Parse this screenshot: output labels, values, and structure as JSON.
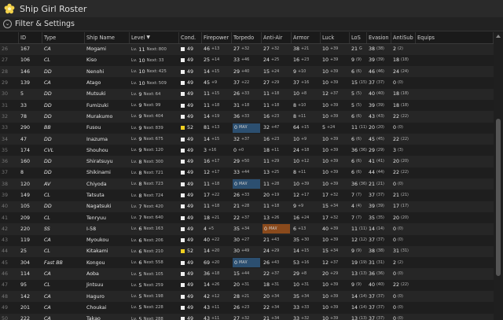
{
  "window": {
    "title": "Ship Girl Roster",
    "icon": "star-flower-icon"
  },
  "filter": {
    "label": "Filter & Settings"
  },
  "columns": {
    "id": "ID",
    "type": "Type",
    "name": "Ship Name",
    "level": "Level",
    "sort": "▼",
    "cond": "Cond.",
    "fp": "Firepower",
    "tp": "Torpedo",
    "aa": "Anti-Air",
    "ar": "Armor",
    "lk": "Luck",
    "los": "LoS",
    "ev": "Evasion",
    "as": "AntiSub",
    "eq": "Equips"
  },
  "labels": {
    "lv": "Lv.",
    "next": "Next:",
    "max": "MAX"
  },
  "rows": [
    {
      "rn": "26",
      "id": "167",
      "type": "CA",
      "name": "Mogami",
      "lv": "11",
      "next": "800",
      "cond": "49",
      "cy": false,
      "fp": [
        "46",
        "+13"
      ],
      "tp": [
        "27",
        "+32"
      ],
      "aa": [
        "27",
        "+32"
      ],
      "ar": [
        "38",
        "+21"
      ],
      "lk": [
        "10",
        "+39"
      ],
      "los": [
        "21",
        "G"
      ],
      "ev": [
        "38",
        "(38)"
      ],
      "as": [
        "2",
        "(2)"
      ]
    },
    {
      "rn": "27",
      "id": "106",
      "type": "CL",
      "name": "Kiso",
      "lv": "10",
      "next": "33",
      "cond": "49",
      "cy": false,
      "fp": [
        "25",
        "+14"
      ],
      "tp": [
        "33",
        "+46"
      ],
      "aa": [
        "24",
        "+25"
      ],
      "ar": [
        "16",
        "+23"
      ],
      "lk": [
        "10",
        "+39"
      ],
      "los": [
        "9",
        "(9)"
      ],
      "ev": [
        "39",
        "(39)"
      ],
      "as": [
        "18",
        "(18)"
      ]
    },
    {
      "rn": "28",
      "id": "146",
      "type": "DD",
      "name": "Nenohi",
      "lv": "10",
      "next": "425",
      "cond": "49",
      "cy": false,
      "fp": [
        "14",
        "+15"
      ],
      "tp": [
        "29",
        "+40"
      ],
      "aa": [
        "15",
        "+24"
      ],
      "ar": [
        "9",
        "+10"
      ],
      "lk": [
        "10",
        "+39"
      ],
      "los": [
        "6",
        "(6)"
      ],
      "ev": [
        "46",
        "(46)"
      ],
      "as": [
        "24",
        "(24)"
      ]
    },
    {
      "rn": "29",
      "id": "139",
      "type": "CA",
      "name": "Atago",
      "lv": "10",
      "next": "509",
      "cond": "49",
      "cy": false,
      "fp": [
        "45",
        "+9"
      ],
      "tp": [
        "37",
        "+22"
      ],
      "aa": [
        "27",
        "+29"
      ],
      "ar": [
        "37",
        "+16"
      ],
      "lk": [
        "10",
        "+39"
      ],
      "los": [
        "15",
        "(15)"
      ],
      "ev": [
        "37",
        "(37)"
      ],
      "as": [
        "0",
        "(0)"
      ]
    },
    {
      "rn": "30",
      "id": "5",
      "type": "DD",
      "name": "Mutsuki",
      "lv": "9",
      "next": "64",
      "cond": "49",
      "cy": false,
      "fp": [
        "11",
        "+15"
      ],
      "tp": [
        "26",
        "+33"
      ],
      "aa": [
        "11",
        "+18"
      ],
      "ar": [
        "10",
        "+8"
      ],
      "lk": [
        "12",
        "+37"
      ],
      "los": [
        "5",
        "(5)"
      ],
      "ev": [
        "40",
        "(40)"
      ],
      "as": [
        "18",
        "(18)"
      ]
    },
    {
      "rn": "31",
      "id": "33",
      "type": "DD",
      "name": "Fumizuki",
      "lv": "9",
      "next": "99",
      "cond": "49",
      "cy": false,
      "fp": [
        "11",
        "+18"
      ],
      "tp": [
        "31",
        "+18"
      ],
      "aa": [
        "11",
        "+18"
      ],
      "ar": [
        "8",
        "+10"
      ],
      "lk": [
        "10",
        "+39"
      ],
      "los": [
        "5",
        "(5)"
      ],
      "ev": [
        "39",
        "(39)"
      ],
      "as": [
        "18",
        "(18)"
      ]
    },
    {
      "rn": "32",
      "id": "78",
      "type": "DD",
      "name": "Murakumo",
      "lv": "9",
      "next": "404",
      "cond": "49",
      "cy": false,
      "fp": [
        "14",
        "+19"
      ],
      "tp": [
        "36",
        "+33"
      ],
      "aa": [
        "16",
        "+23"
      ],
      "ar": [
        "8",
        "+11"
      ],
      "lk": [
        "10",
        "+39"
      ],
      "los": [
        "6",
        "(6)"
      ],
      "ev": [
        "43",
        "(43)"
      ],
      "as": [
        "22",
        "(22)"
      ]
    },
    {
      "rn": "33",
      "id": "290",
      "type": "BB",
      "name": "Fusou",
      "lv": "9",
      "next": "839",
      "cond": "52",
      "cy": true,
      "fp": [
        "81",
        "+13"
      ],
      "tp": [
        "0",
        ""
      ],
      "tpmax": true,
      "aa": [
        "32",
        "+47"
      ],
      "ar": [
        "64",
        "+15"
      ],
      "lk": [
        "5",
        "+24"
      ],
      "los": [
        "11",
        "(11)"
      ],
      "ev": [
        "20",
        "(20)"
      ],
      "as": [
        "0",
        "(0)"
      ]
    },
    {
      "rn": "34",
      "id": "47",
      "type": "DD",
      "name": "Inazuma",
      "lv": "9",
      "next": "675",
      "cond": "49",
      "cy": false,
      "fp": [
        "14",
        "+15"
      ],
      "tp": [
        "32",
        "+37"
      ],
      "aa": [
        "16",
        "+23"
      ],
      "ar": [
        "10",
        "+9"
      ],
      "lk": [
        "10",
        "+39"
      ],
      "los": [
        "6",
        "(6)"
      ],
      "ev": [
        "45",
        "(45)"
      ],
      "as": [
        "22",
        "(22)"
      ]
    },
    {
      "rn": "35",
      "id": "174",
      "type": "CVL",
      "name": "Shouhou",
      "lv": "9",
      "next": "120",
      "cond": "49",
      "cy": false,
      "fp": [
        "3",
        "+16"
      ],
      "tp": [
        "0",
        "+0"
      ],
      "aa": [
        "18",
        "+11"
      ],
      "ar": [
        "24",
        "+18"
      ],
      "lk": [
        "10",
        "+39"
      ],
      "los": [
        "36",
        "(36)"
      ],
      "ev": [
        "29",
        "(29)"
      ],
      "as": [
        "3",
        "(3)"
      ]
    },
    {
      "rn": "36",
      "id": "160",
      "type": "DD",
      "name": "Shiratsuyu",
      "lv": "8",
      "next": "300",
      "cond": "49",
      "cy": false,
      "fp": [
        "16",
        "+17"
      ],
      "tp": [
        "29",
        "+50"
      ],
      "aa": [
        "11",
        "+29"
      ],
      "ar": [
        "10",
        "+12"
      ],
      "lk": [
        "10",
        "+39"
      ],
      "los": [
        "6",
        "(6)"
      ],
      "ev": [
        "41",
        "(41)"
      ],
      "as": [
        "20",
        "(20)"
      ]
    },
    {
      "rn": "37",
      "id": "8",
      "type": "DD",
      "name": "Shikinami",
      "lv": "8",
      "next": "721",
      "cond": "49",
      "cy": false,
      "fp": [
        "12",
        "+17"
      ],
      "tp": [
        "33",
        "+44"
      ],
      "aa": [
        "13",
        "+25"
      ],
      "ar": [
        "8",
        "+11"
      ],
      "lk": [
        "10",
        "+39"
      ],
      "los": [
        "6",
        "(6)"
      ],
      "ev": [
        "44",
        "(44)"
      ],
      "as": [
        "22",
        "(22)"
      ]
    },
    {
      "rn": "38",
      "id": "120",
      "type": "AV",
      "name": "Chiyoda",
      "lv": "8",
      "next": "723",
      "cond": "49",
      "cy": false,
      "fp": [
        "11",
        "+18"
      ],
      "tp": [
        "0",
        ""
      ],
      "tpmax": true,
      "aa": [
        "11",
        "+28"
      ],
      "ar": [
        "10",
        "+39"
      ],
      "lk": [
        "10",
        "+39"
      ],
      "los": [
        "36",
        "(36)"
      ],
      "ev": [
        "21",
        "(21)"
      ],
      "as": [
        "0",
        "(0)"
      ]
    },
    {
      "rn": "39",
      "id": "149",
      "type": "CL",
      "name": "Tatsuta",
      "lv": "8",
      "next": "724",
      "cond": "49",
      "cy": false,
      "fp": [
        "17",
        "+22"
      ],
      "tp": [
        "26",
        "+33"
      ],
      "aa": [
        "20",
        "+19"
      ],
      "ar": [
        "12",
        "+17"
      ],
      "lk": [
        "17",
        "+32"
      ],
      "los": [
        "7",
        "(7)"
      ],
      "ev": [
        "37",
        "(37)"
      ],
      "as": [
        "21",
        "(21)"
      ]
    },
    {
      "rn": "40",
      "id": "105",
      "type": "DD",
      "name": "Nagatsuki",
      "lv": "7",
      "next": "420",
      "cond": "49",
      "cy": false,
      "fp": [
        "11",
        "+18"
      ],
      "tp": [
        "21",
        "+28"
      ],
      "aa": [
        "11",
        "+18"
      ],
      "ar": [
        "9",
        "+9"
      ],
      "lk": [
        "15",
        "+34"
      ],
      "los": [
        "4",
        "(4)"
      ],
      "ev": [
        "39",
        "(39)"
      ],
      "as": [
        "17",
        "(17)"
      ]
    },
    {
      "rn": "41",
      "id": "209",
      "type": "CL",
      "name": "Tenryuu",
      "lv": "7",
      "next": "640",
      "cond": "49",
      "cy": false,
      "fp": [
        "18",
        "+21"
      ],
      "tp": [
        "22",
        "+37"
      ],
      "aa": [
        "13",
        "+26"
      ],
      "ar": [
        "16",
        "+24"
      ],
      "lk": [
        "17",
        "+32"
      ],
      "los": [
        "7",
        "(7)"
      ],
      "ev": [
        "35",
        "(35)"
      ],
      "as": [
        "20",
        "(20)"
      ]
    },
    {
      "rn": "42",
      "id": "220",
      "type": "SS",
      "name": "I-58",
      "lv": "6",
      "next": "163",
      "cond": "49",
      "cy": false,
      "fp": [
        "4",
        "+5"
      ],
      "tp": [
        "35",
        "+34"
      ],
      "aa": [
        "0",
        ""
      ],
      "aamax": true,
      "ar": [
        "6",
        "+13"
      ],
      "lk": [
        "40",
        "+39"
      ],
      "los": [
        "11",
        "(11)"
      ],
      "ev": [
        "14",
        "(14)"
      ],
      "as": [
        "0",
        "(0)"
      ]
    },
    {
      "rn": "43",
      "id": "119",
      "type": "CA",
      "name": "Myoukou",
      "lv": "6",
      "next": "206",
      "cond": "49",
      "cy": false,
      "fp": [
        "40",
        "+22"
      ],
      "tp": [
        "30",
        "+27"
      ],
      "aa": [
        "21",
        "+43"
      ],
      "ar": [
        "35",
        "+30"
      ],
      "lk": [
        "10",
        "+39"
      ],
      "los": [
        "12",
        "(12)"
      ],
      "ev": [
        "37",
        "(37)"
      ],
      "as": [
        "0",
        "(0)"
      ]
    },
    {
      "rn": "44",
      "id": "25",
      "type": "CL",
      "name": "Kitakami",
      "lv": "6",
      "next": "210",
      "cond": "52",
      "cy": true,
      "fp": [
        "14",
        "+20"
      ],
      "tp": [
        "30",
        "+49"
      ],
      "aa": [
        "24",
        "+29"
      ],
      "ar": [
        "14",
        "+15"
      ],
      "lk": [
        "15",
        "+34"
      ],
      "los": [
        "9",
        "(9)"
      ],
      "ev": [
        "38",
        "(38)"
      ],
      "as": [
        "31",
        "(31)"
      ]
    },
    {
      "rn": "45",
      "id": "304",
      "type": "Fast BB",
      "name": "Kongou",
      "lv": "6",
      "next": "558",
      "cond": "49",
      "cy": false,
      "fp": [
        "69",
        "+20"
      ],
      "tp": [
        "0",
        ""
      ],
      "tpmax": true,
      "aa": [
        "26",
        "+43"
      ],
      "ar": [
        "53",
        "+16"
      ],
      "lk": [
        "12",
        "+37"
      ],
      "los": [
        "19",
        "(19)"
      ],
      "ev": [
        "31",
        "(31)"
      ],
      "as": [
        "2",
        "(2)"
      ]
    },
    {
      "rn": "46",
      "id": "114",
      "type": "CA",
      "name": "Aoba",
      "lv": "5",
      "next": "105",
      "cond": "49",
      "cy": false,
      "fp": [
        "36",
        "+18"
      ],
      "tp": [
        "15",
        "+44"
      ],
      "aa": [
        "22",
        "+37"
      ],
      "ar": [
        "29",
        "+8"
      ],
      "lk": [
        "20",
        "+29"
      ],
      "los": [
        "13",
        "(13)"
      ],
      "ev": [
        "36",
        "(36)"
      ],
      "as": [
        "0",
        "(0)"
      ]
    },
    {
      "rn": "47",
      "id": "95",
      "type": "CL",
      "name": "Jintsuu",
      "lv": "5",
      "next": "259",
      "cond": "49",
      "cy": false,
      "fp": [
        "14",
        "+26"
      ],
      "tp": [
        "20",
        "+31"
      ],
      "aa": [
        "18",
        "+31"
      ],
      "ar": [
        "10",
        "+31"
      ],
      "lk": [
        "10",
        "+39"
      ],
      "los": [
        "9",
        "(9)"
      ],
      "ev": [
        "40",
        "(40)"
      ],
      "as": [
        "22",
        "(22)"
      ]
    },
    {
      "rn": "48",
      "id": "142",
      "type": "CA",
      "name": "Haguro",
      "lv": "5",
      "next": "198",
      "cond": "49",
      "cy": false,
      "fp": [
        "42",
        "+12"
      ],
      "tp": [
        "28",
        "+21"
      ],
      "aa": [
        "20",
        "+34"
      ],
      "ar": [
        "35",
        "+34"
      ],
      "lk": [
        "10",
        "+39"
      ],
      "los": [
        "14",
        "(14)"
      ],
      "ev": [
        "37",
        "(37)"
      ],
      "as": [
        "0",
        "(0)"
      ]
    },
    {
      "rn": "49",
      "id": "201",
      "type": "CA",
      "name": "Choukai",
      "lv": "5",
      "next": "228",
      "cond": "49",
      "cy": false,
      "fp": [
        "43",
        "+11"
      ],
      "tp": [
        "26",
        "+23"
      ],
      "aa": [
        "22",
        "+34"
      ],
      "ar": [
        "33",
        "+33"
      ],
      "lk": [
        "10",
        "+39"
      ],
      "los": [
        "14",
        "(14)"
      ],
      "ev": [
        "37",
        "(37)"
      ],
      "as": [
        "0",
        "(0)"
      ]
    },
    {
      "rn": "50",
      "id": "222",
      "type": "CA",
      "name": "Takao",
      "lv": "5",
      "next": "288",
      "cond": "49",
      "cy": false,
      "fp": [
        "43",
        "+11"
      ],
      "tp": [
        "27",
        "+32"
      ],
      "aa": [
        "21",
        "+34"
      ],
      "ar": [
        "33",
        "+32"
      ],
      "lk": [
        "10",
        "+39"
      ],
      "los": [
        "13",
        "(13)"
      ],
      "ev": [
        "37",
        "(37)"
      ],
      "as": [
        "0",
        "(0)"
      ]
    }
  ]
}
